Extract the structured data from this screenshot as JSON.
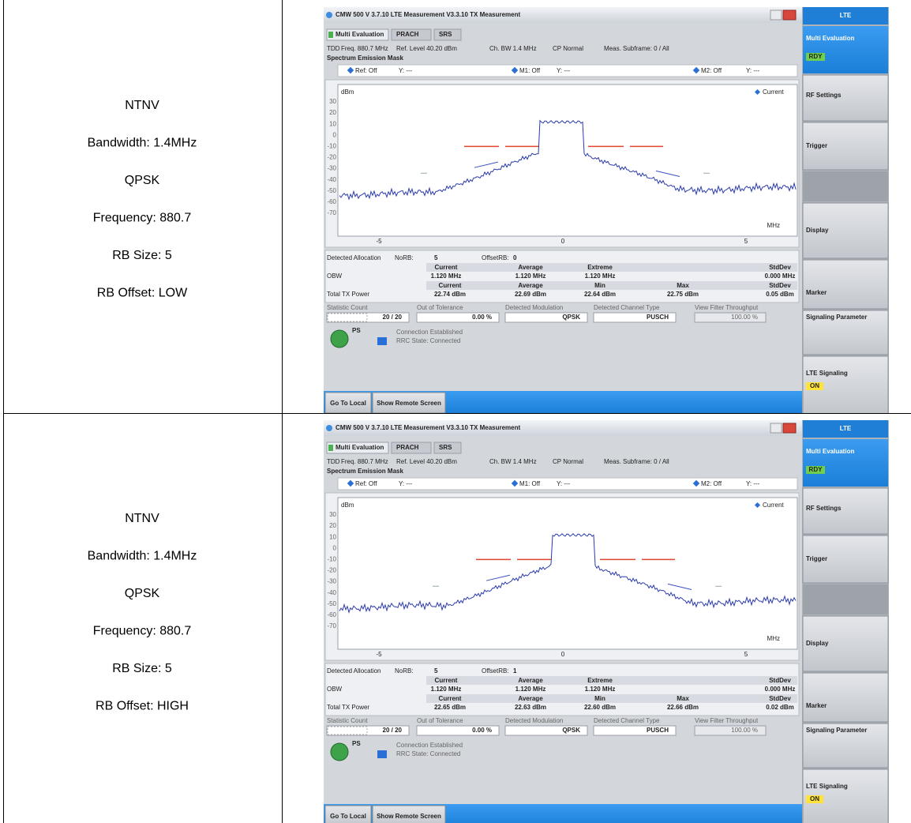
{
  "table": {
    "rows": [
      {
        "description": [
          "NTNV",
          "Bandwidth: 1.4MHz",
          "QPSK",
          "Frequency: 880.7",
          "RB Size: 5",
          "RB Offset: LOW"
        ],
        "screen": {
          "title_bar": "CMW 500 V 3.7.10   LTE Measurement   V3.3.10   TX Measurement",
          "tabs": [
            "Multi Evaluation",
            "PRACH",
            "SRS"
          ],
          "info": [
            "TDD",
            "Freq. 880.7 MHz",
            "Ref. Level 40.20 dBm",
            "Ch. BW 1.4 MHz",
            "CP Normal",
            "Meas. Subframe: 0 / All"
          ],
          "view_title": "Spectrum Emission Mask",
          "marker_bar": [
            "Ref: Off",
            "Y: ---",
            "M1: Off",
            "Y: ---",
            "M2: Off",
            "Y: ---"
          ],
          "y_unit": "dBm",
          "y_labels": [
            "30",
            "20",
            "10",
            "0",
            "-10",
            "-20",
            "-30",
            "-40",
            "-50",
            "-60",
            "-70"
          ],
          "x_labels": [
            "-5",
            "0",
            "5"
          ],
          "x_unit": "MHz",
          "legend": "Current",
          "allocation": [
            "Detected Allocation",
            "NoRB:",
            "5",
            "OffsetRB:",
            "0"
          ],
          "obw_header": [
            "Current",
            "Average",
            "Extreme",
            "StdDev"
          ],
          "obw": [
            "OBW",
            "1.120 MHz",
            "1.120 MHz",
            "1.120 MHz",
            "0.000 MHz"
          ],
          "power_header": [
            "Current",
            "Average",
            "Min",
            "Max",
            "StdDev"
          ],
          "power": [
            "Total TX Power",
            "22.74 dBm",
            "22.69 dBm",
            "22.64 dBm",
            "22.75 dBm",
            "0.05 dBm"
          ],
          "stat_labels": [
            "Statistic Count",
            "Out of Tolerance",
            "Detected Modulation",
            "Detected Channel Type",
            "View Filter Throughput"
          ],
          "stat_values": [
            "20 / 20",
            "0.00 %",
            "QPSK",
            "PUSCH",
            "100.00 %"
          ],
          "connection": [
            "PS",
            "Connection Established",
            "RRC State: Connected"
          ],
          "softkeys": [
            "Go To Local",
            "Show Remote Screen"
          ],
          "sidebar": {
            "header": "LTE",
            "multi_evaluation": "Multi Evaluation",
            "multi_status": "RDY",
            "buttons": [
              "RF Settings",
              "Trigger",
              "Display",
              "Marker",
              "Signaling Parameter"
            ],
            "signaling": "LTE Signaling",
            "signaling_status": "ON"
          }
        }
      },
      {
        "description": [
          "NTNV",
          "Bandwidth: 1.4MHz",
          "QPSK",
          "Frequency: 880.7",
          "RB Size: 5",
          "RB Offset: HIGH"
        ],
        "screen": {
          "title_bar": "CMW 500 V 3.7.10   LTE Measurement   V3.3.10   TX Measurement",
          "tabs": [
            "Multi Evaluation",
            "PRACH",
            "SRS"
          ],
          "info": [
            "TDD",
            "Freq. 880.7 MHz",
            "Ref. Level 40.20 dBm",
            "Ch. BW 1.4 MHz",
            "CP Normal",
            "Meas. Subframe: 0 / All"
          ],
          "view_title": "Spectrum Emission Mask",
          "marker_bar": [
            "Ref: Off",
            "Y: ---",
            "M1: Off",
            "Y: ---",
            "M2: Off",
            "Y: ---"
          ],
          "y_unit": "dBm",
          "y_labels": [
            "30",
            "20",
            "10",
            "0",
            "-10",
            "-20",
            "-30",
            "-40",
            "-50",
            "-60",
            "-70"
          ],
          "x_labels": [
            "-5",
            "0",
            "5"
          ],
          "x_unit": "MHz",
          "legend": "Current",
          "allocation": [
            "Detected Allocation",
            "NoRB:",
            "5",
            "OffsetRB:",
            "1"
          ],
          "obw_header": [
            "Current",
            "Average",
            "Extreme",
            "StdDev"
          ],
          "obw": [
            "OBW",
            "1.120 MHz",
            "1.120 MHz",
            "1.120 MHz",
            "0.000 MHz"
          ],
          "power_header": [
            "Current",
            "Average",
            "Min",
            "Max",
            "StdDev"
          ],
          "power": [
            "Total TX Power",
            "22.65 dBm",
            "22.63 dBm",
            "22.60 dBm",
            "22.66 dBm",
            "0.02 dBm"
          ],
          "stat_labels": [
            "Statistic Count",
            "Out of Tolerance",
            "Detected Modulation",
            "Detected Channel Type",
            "View Filter Throughput"
          ],
          "stat_values": [
            "20 / 20",
            "0.00 %",
            "QPSK",
            "PUSCH",
            "100.00 %"
          ],
          "connection": [
            "PS",
            "Connection Established",
            "RRC State: Connected"
          ],
          "softkeys": [
            "Go To Local",
            "Show Remote Screen"
          ],
          "sidebar": {
            "header": "LTE",
            "multi_evaluation": "Multi Evaluation",
            "multi_status": "RDY",
            "buttons": [
              "RF Settings",
              "Trigger",
              "Display",
              "Marker",
              "Signaling Parameter"
            ],
            "signaling": "LTE Signaling",
            "signaling_status": "ON"
          }
        }
      }
    ]
  }
}
